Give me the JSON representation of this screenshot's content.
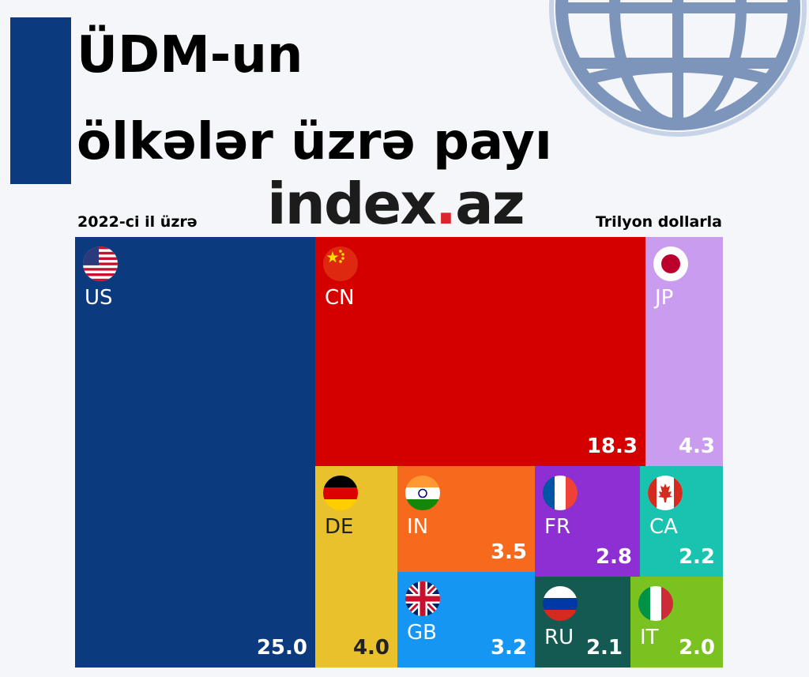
{
  "title_line1": "ÜDM-un",
  "title_line2": "ölkələr üzrə payı",
  "subtitle_left": "2022-ci il üzrə",
  "subtitle_right": "Trilyon dollarla",
  "brand": {
    "main": "index",
    "dot": ".",
    "suffix": "az"
  },
  "colors": {
    "accent_bar": "#0c3a7e",
    "US": "#0c3a7e",
    "CN": "#d40000",
    "JP": "#c99cf0",
    "DE": "#e8c12c",
    "IN": "#f76a1e",
    "FR": "#8e2fd4",
    "CA": "#19c3b0",
    "GB": "#1696f3",
    "RU": "#155a52",
    "IT": "#79c21f"
  },
  "chart_data": {
    "type": "treemap",
    "unit": "Trilyon dollarla",
    "items": [
      {
        "code": "US",
        "value": 25.0,
        "label": "25.0",
        "flag": "us-flag-icon"
      },
      {
        "code": "CN",
        "value": 18.3,
        "label": "18.3",
        "flag": "china-flag-icon"
      },
      {
        "code": "JP",
        "value": 4.3,
        "label": "4.3",
        "flag": "japan-flag-icon"
      },
      {
        "code": "DE",
        "value": 4.0,
        "label": "4.0",
        "flag": "germany-flag-icon"
      },
      {
        "code": "IN",
        "value": 3.5,
        "label": "3.5",
        "flag": "india-flag-icon"
      },
      {
        "code": "FR",
        "value": 2.8,
        "label": "2.8",
        "flag": "france-flag-icon"
      },
      {
        "code": "CA",
        "value": 2.2,
        "label": "2.2",
        "flag": "canada-flag-icon"
      },
      {
        "code": "GB",
        "value": 3.2,
        "label": "3.2",
        "flag": "uk-flag-icon"
      },
      {
        "code": "RU",
        "value": 2.1,
        "label": "2.1",
        "flag": "russia-flag-icon"
      },
      {
        "code": "IT",
        "value": 2.0,
        "label": "2.0",
        "flag": "italy-flag-icon"
      }
    ]
  }
}
